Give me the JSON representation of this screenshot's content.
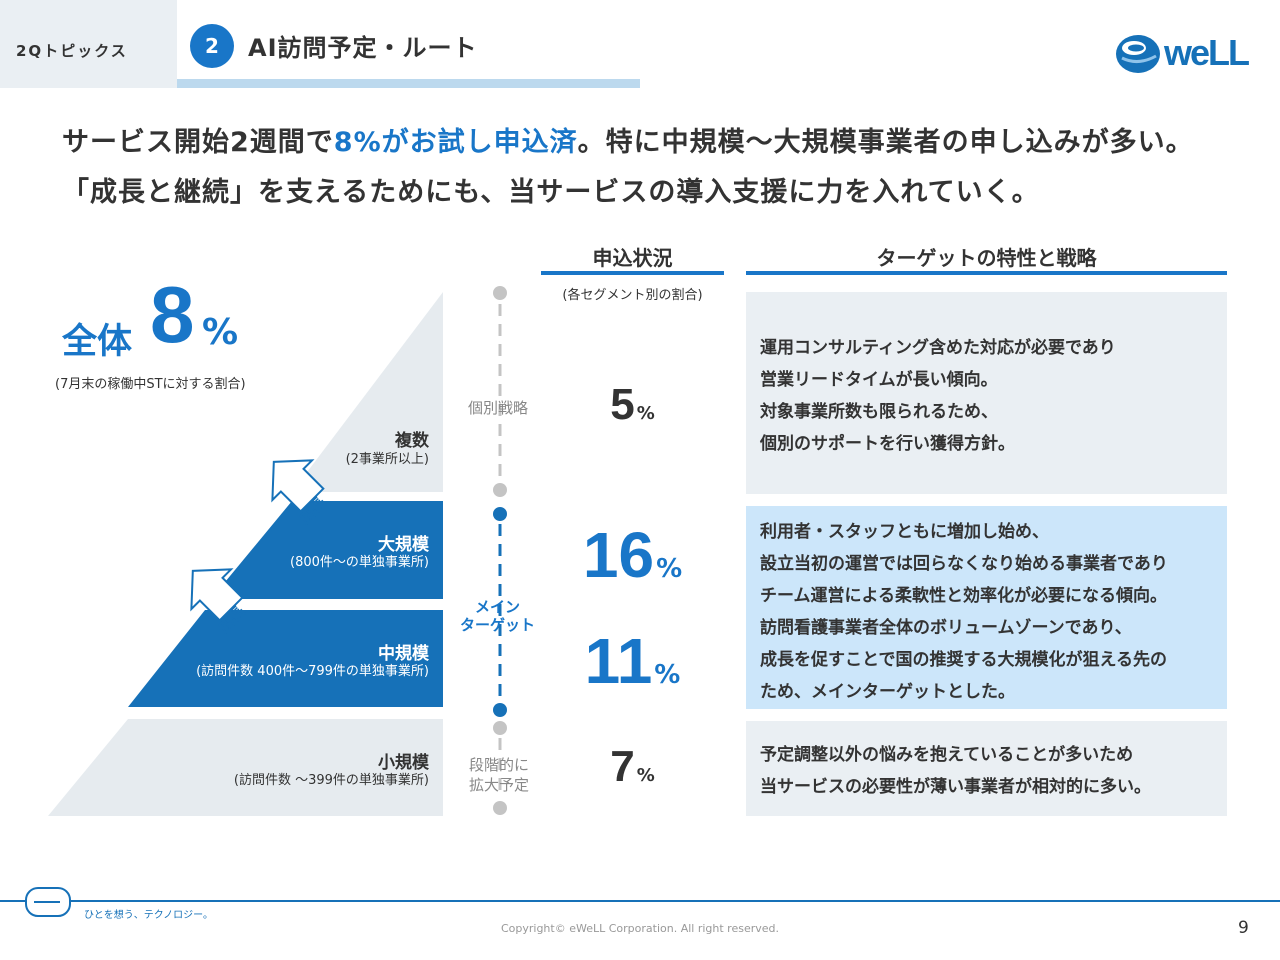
{
  "header": {
    "section": "2Qトピックス",
    "number": "2",
    "title": "AI訪問予定・ルート",
    "logo_text": "weLL"
  },
  "lead": {
    "line1_pre": "サービス開始2週間で",
    "line1_accent": "8%がお試し申込済",
    "line1_post": "。特に中規模～大規模事業者の申し込みが多い。",
    "line2": "「成長と継続」を支えるためにも、当サービスの導入支援に力を入れていく。"
  },
  "overall": {
    "label": "全体",
    "value": "8",
    "unit": "%",
    "note": "(7月末の稼働中STに対する割合)"
  },
  "segments": [
    {
      "name": "複数",
      "sub": "(2事業所以上)"
    },
    {
      "name": "大規模",
      "sub": "(800件～の単独事業所)"
    },
    {
      "name": "中規模",
      "sub": "(訪問件数 400件～799件の単独事業所)"
    },
    {
      "name": "小規模",
      "sub": "(訪問件数 ～399件の単独事業所)"
    }
  ],
  "growth_label": "成長",
  "columns": {
    "status_title": "申込状況",
    "status_note": "(各セグメント別の割合)",
    "strategy_title": "ターゲットの特性と戦略"
  },
  "timeline": {
    "individual": "個別戦略",
    "main_line1": "メイン",
    "main_line2": "ターゲット",
    "expand_line1": "段階的に",
    "expand_line2": "拡大予定"
  },
  "rates": [
    {
      "value": "5",
      "unit": "%"
    },
    {
      "value": "16",
      "unit": "%"
    },
    {
      "value": "11",
      "unit": "%"
    },
    {
      "value": "7",
      "unit": "%"
    }
  ],
  "strategy": {
    "multi": [
      "運用コンサルティング含めた対応が必要であり",
      "営業リードタイムが長い傾向。",
      "対象事業所数も限られるため、",
      "個別のサポートを行い獲得方針。"
    ],
    "main": [
      "利用者・スタッフともに増加し始め、",
      "設立当初の運営では回らなくなり始める事業者であり",
      "チーム運営による柔軟性と効率化が必要になる傾向。",
      "訪問看護事業者全体のボリュームゾーンであり、",
      "成長を促すことで国の推奨する大規模化が狙える先の",
      "ため、メインターゲットとした。"
    ],
    "small": [
      "予定調整以外の悩みを抱えていることが多いため",
      "当サービスの必要性が薄い事業者が相対的に多い。"
    ]
  },
  "footer": {
    "tagline": "ひとを想う、テクノロジー。",
    "copyright": "Copyright© eWeLL Corporation. All right reserved.",
    "page": "9"
  },
  "colors": {
    "brand_blue": "#1976c8",
    "light_blue": "#cce6fa",
    "light_gray": "#eaeff3",
    "pyramid_gray": "#e6ebef"
  }
}
